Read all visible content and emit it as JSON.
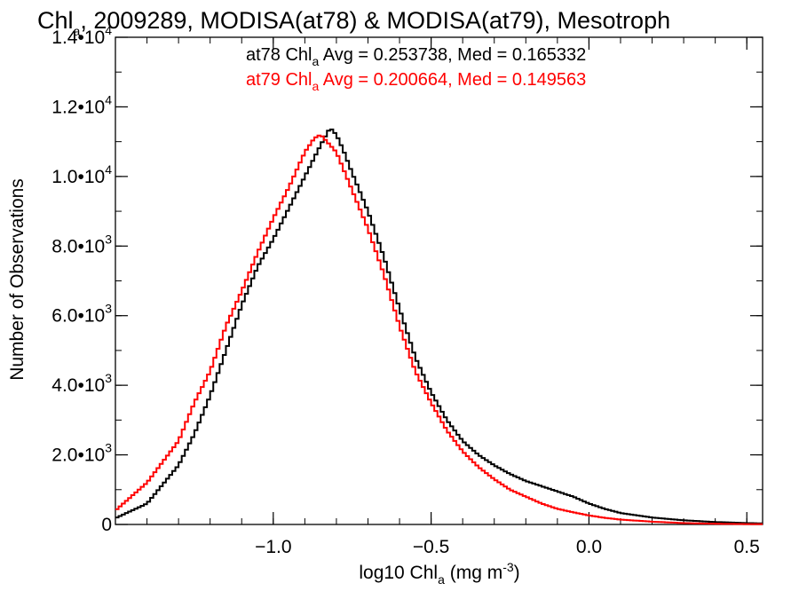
{
  "chart_data": {
    "type": "histogram-step",
    "title": {
      "prefix": "Chl",
      "subscript": "a",
      "rest": ", 2009289, MODISA(at78) & MODISA(at79), Mesotroph"
    },
    "xlabel": {
      "prefix": "log10 Chl",
      "subscript": "a",
      "mid": " (mg m",
      "superscript": "-3",
      "suffix": ")"
    },
    "ylabel": "Number of Observations",
    "xlim": [
      -1.5,
      0.55
    ],
    "ylim": [
      0,
      14000
    ],
    "x_ticks": [
      {
        "value": -1.0,
        "label": "−1.0"
      },
      {
        "value": -0.5,
        "label": "−0.5"
      },
      {
        "value": 0.0,
        "label": "0.0"
      },
      {
        "value": 0.5,
        "label": "0.5"
      }
    ],
    "y_ticks": [
      {
        "value": 0,
        "mantissa": "0",
        "exp": ""
      },
      {
        "value": 2000,
        "mantissa": "2.0•10",
        "exp": "3"
      },
      {
        "value": 4000,
        "mantissa": "4.0•10",
        "exp": "3"
      },
      {
        "value": 6000,
        "mantissa": "6.0•10",
        "exp": "3"
      },
      {
        "value": 8000,
        "mantissa": "8.0•10",
        "exp": "3"
      },
      {
        "value": 10000,
        "mantissa": "1.0•10",
        "exp": "4"
      },
      {
        "value": 12000,
        "mantissa": "1.2•10",
        "exp": "4"
      },
      {
        "value": 14000,
        "mantissa": "1.4•10",
        "exp": "4"
      }
    ],
    "legend_stats": [
      {
        "series": "at78",
        "prefix": "at78 Chl",
        "subscript": "a",
        "rest": " Avg = 0.253738, Med = 0.165332",
        "color": "#000000"
      },
      {
        "series": "at79",
        "prefix": "at79 Chl",
        "subscript": "a",
        "rest": " Avg = 0.200664, Med = 0.149563",
        "color": "#ff0000"
      }
    ],
    "series": [
      {
        "name": "at78",
        "color": "#000000",
        "x": [
          -1.5,
          -1.4,
          -1.3,
          -1.25,
          -1.2,
          -1.15,
          -1.1,
          -1.05,
          -1.0,
          -0.95,
          -0.9,
          -0.85,
          -0.82,
          -0.8,
          -0.78,
          -0.75,
          -0.7,
          -0.65,
          -0.6,
          -0.55,
          -0.5,
          -0.45,
          -0.4,
          -0.35,
          -0.3,
          -0.25,
          -0.2,
          -0.15,
          -0.1,
          -0.05,
          0.0,
          0.05,
          0.1,
          0.2,
          0.3,
          0.4,
          0.5,
          0.55
        ],
        "y": [
          180,
          600,
          1700,
          2600,
          3700,
          5000,
          6300,
          7400,
          8200,
          9100,
          10000,
          10900,
          11400,
          11200,
          10800,
          10100,
          9000,
          7700,
          6200,
          4800,
          3800,
          3000,
          2400,
          2000,
          1700,
          1450,
          1250,
          1100,
          950,
          800,
          600,
          450,
          330,
          200,
          120,
          70,
          40,
          30
        ]
      },
      {
        "name": "at79",
        "color": "#ff0000",
        "x": [
          -1.5,
          -1.4,
          -1.3,
          -1.25,
          -1.2,
          -1.15,
          -1.1,
          -1.05,
          -1.0,
          -0.95,
          -0.9,
          -0.87,
          -0.85,
          -0.83,
          -0.8,
          -0.75,
          -0.7,
          -0.65,
          -0.6,
          -0.55,
          -0.5,
          -0.45,
          -0.4,
          -0.35,
          -0.3,
          -0.25,
          -0.2,
          -0.15,
          -0.1,
          -0.05,
          0.0,
          0.05,
          0.1,
          0.2,
          0.3,
          0.4,
          0.5,
          0.55
        ],
        "y": [
          400,
          1200,
          2400,
          3500,
          4400,
          5700,
          6700,
          7800,
          8800,
          9700,
          10700,
          11100,
          11200,
          11000,
          10700,
          9600,
          8500,
          7200,
          5700,
          4400,
          3500,
          2700,
          2100,
          1650,
          1300,
          1000,
          800,
          600,
          450,
          350,
          260,
          190,
          140,
          80,
          40,
          20,
          10,
          8
        ]
      }
    ]
  }
}
